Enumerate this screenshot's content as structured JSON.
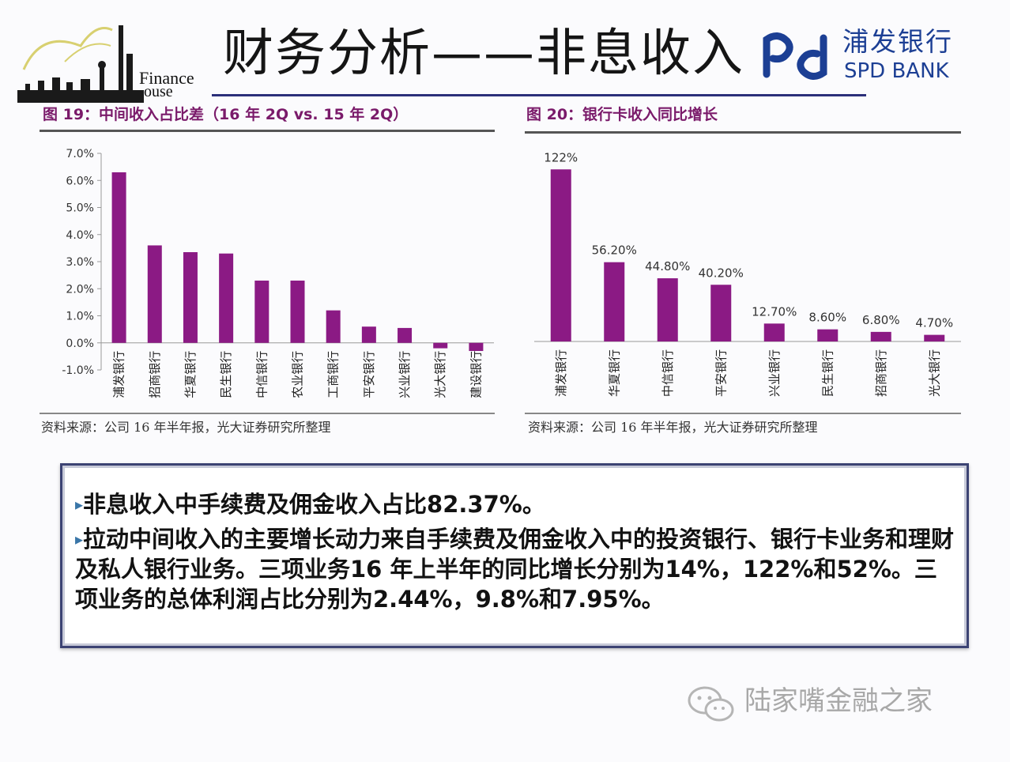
{
  "header": {
    "logo_text_1": "Finance",
    "logo_text_2": "ouse",
    "title": "财务分析——非息收入",
    "bank_name_cn": "浦发银行",
    "bank_name_en": "SPD BANK"
  },
  "colors": {
    "bar": "#8b1a84",
    "accent_line": "#2b2f7a",
    "bank_blue": "#1c3f94"
  },
  "chart_data": [
    {
      "type": "bar",
      "title": "图 19：中间收入占比差（16 年 2Q vs. 15 年 2Q）",
      "categories": [
        "浦发银行",
        "招商银行",
        "华夏银行",
        "民生银行",
        "中信银行",
        "农业银行",
        "工商银行",
        "平安银行",
        "兴业银行",
        "光大银行",
        "建设银行"
      ],
      "values": [
        6.3,
        3.6,
        3.35,
        3.3,
        2.3,
        2.3,
        1.2,
        0.6,
        0.55,
        -0.2,
        -0.3
      ],
      "ylim": [
        -1.0,
        7.0
      ],
      "yticks": [
        -1.0,
        0.0,
        1.0,
        2.0,
        3.0,
        4.0,
        5.0,
        6.0,
        7.0
      ],
      "ytick_labels": [
        "-1.0%",
        "0.0%",
        "1.0%",
        "2.0%",
        "3.0%",
        "4.0%",
        "5.0%",
        "6.0%",
        "7.0%"
      ],
      "source": "资料来源：公司 16 年半年报，光大证券研究所整理"
    },
    {
      "type": "bar",
      "title": "图 20：银行卡收入同比增长",
      "categories": [
        "浦发银行",
        "华夏银行",
        "中信银行",
        "平安银行",
        "兴业银行",
        "民生银行",
        "招商银行",
        "光大银行"
      ],
      "values": [
        122,
        56.2,
        44.8,
        40.2,
        12.7,
        8.6,
        6.8,
        4.7
      ],
      "data_labels": [
        "122%",
        "56.20%",
        "44.80%",
        "40.20%",
        "12.70%",
        "8.60%",
        "6.80%",
        "4.70%"
      ],
      "ylim": [
        0,
        130
      ],
      "source": "资料来源：公司 16 年半年报，光大证券研究所整理"
    }
  ],
  "textbox": {
    "bullets": [
      "非息收入中手续费及佣金收入占比82.37%。",
      "拉动中间收入的主要增长动力来自手续费及佣金收入中的投资银行、银行卡业务和理财及私人银行业务。三项业务16 年上半年的同比增长分别为14%，122%和52%。三项业务的总体利润占比分别为2.44%，9.8%和7.95%。"
    ]
  },
  "watermark": "陆家嘴金融之家"
}
